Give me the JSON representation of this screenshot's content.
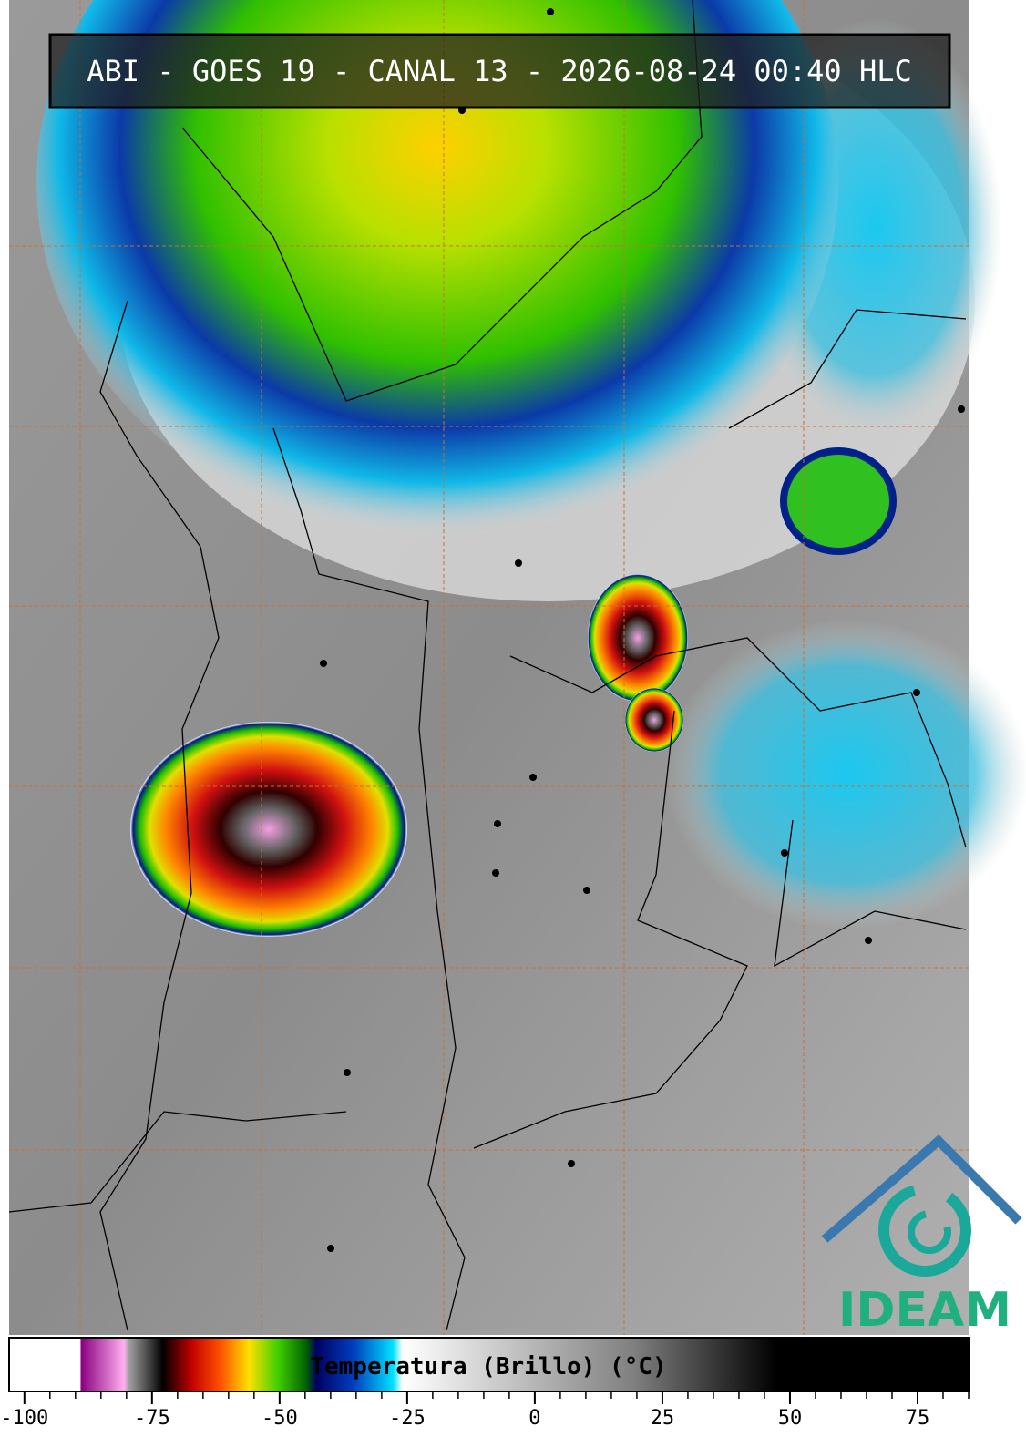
{
  "header": {
    "title": "ABI - GOES 19 - CANAL 13 - 2026-08-24 00:40 HLC"
  },
  "colorbar": {
    "label": "Temperatura (Brillo) (°C)",
    "lim": [
      -103,
      85
    ],
    "ticks": [
      -100,
      -75,
      -50,
      -25,
      0,
      25,
      50,
      75
    ],
    "minor_ticks": [
      -95,
      -90,
      -85,
      -80,
      -70,
      -65,
      -60,
      -55,
      -45,
      -40,
      -35,
      -30,
      -20,
      -15,
      -10,
      -5,
      5,
      10,
      15,
      20,
      30,
      35,
      40,
      45,
      55,
      60,
      65,
      70,
      80,
      85
    ]
  },
  "logo": {
    "text": "IDEAM"
  }
}
